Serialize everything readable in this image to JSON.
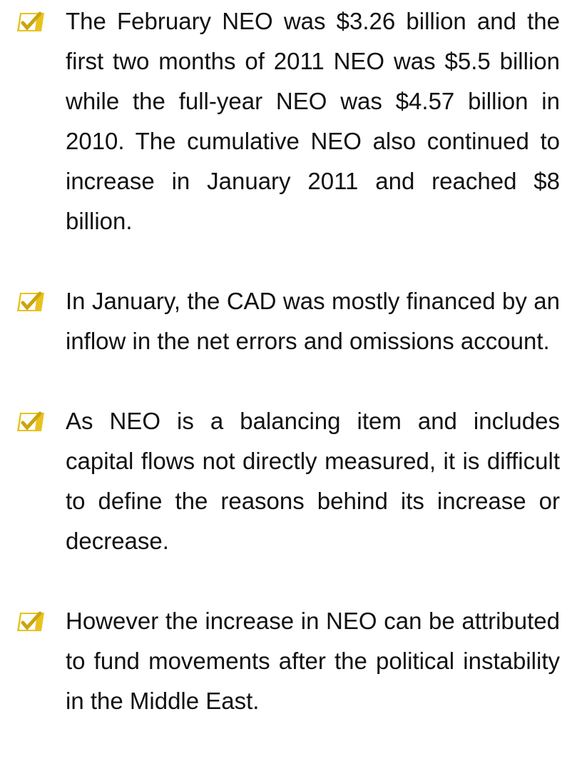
{
  "bullets": [
    "The February NEO was $3.26 billion and the first two months of 2011 NEO was $5.5 billion while the full-year NEO was $4.57 billion in 2010. The cumulative NEO also continued to increase in January 2011 and reached $8 billion.",
    "In January, the CAD was mostly financed by an inflow in the net errors and omissions account.",
    "As NEO is a balancing item and includes capital flows not directly measured, it is difficult to define the reasons behind its increase or decrease.",
    "However the increase in NEO can be attributed to fund movements after the political instability in the Middle East."
  ]
}
